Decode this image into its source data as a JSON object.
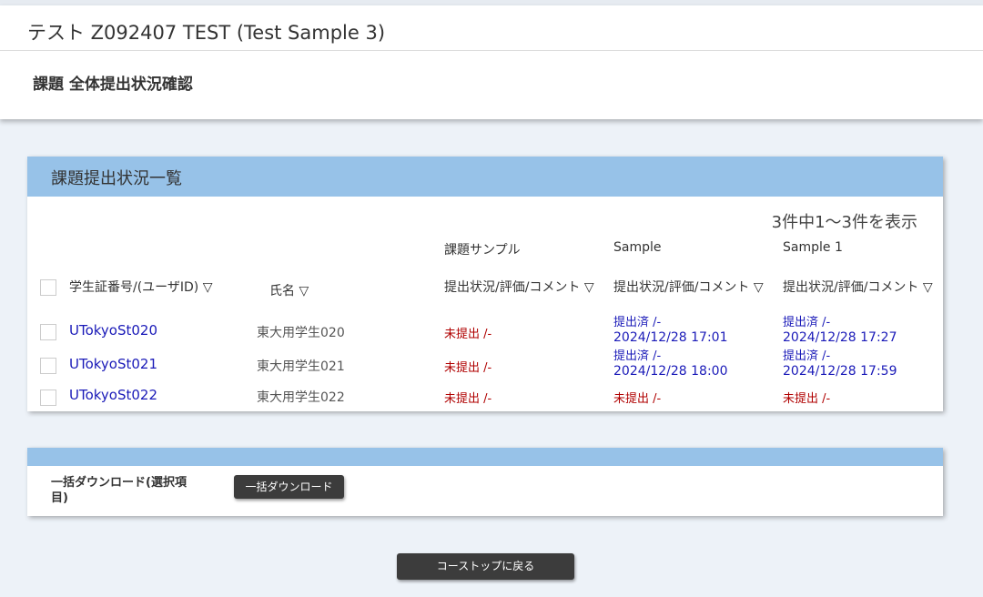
{
  "header": {
    "title": "テスト Z092407 TEST (Test Sample 3)",
    "subtitle": "課題 全体提出状況確認"
  },
  "list": {
    "heading": "課題提出状況一覧",
    "count": "3件中1～3件を表示",
    "columns": {
      "id": "学生証番号/(ユーザID) ▽",
      "name": "氏名 ▽",
      "assignments": [
        {
          "title": "課題サンプル",
          "sub": "提出状況/評価/コメント ▽"
        },
        {
          "title": "Sample",
          "sub": "提出状況/評価/コメント ▽"
        },
        {
          "title": "Sample 1",
          "sub": "提出状況/評価/コメント ▽"
        }
      ]
    },
    "rows": [
      {
        "id": "UTokyoSt020",
        "name": "東大用学生020",
        "cells": [
          {
            "status": "未提出 /-",
            "date": ""
          },
          {
            "status": "提出済 /-",
            "date": "2024/12/28 17:01"
          },
          {
            "status": "提出済 /-",
            "date": "2024/12/28 17:27"
          }
        ]
      },
      {
        "id": "UTokyoSt021",
        "name": "東大用学生021",
        "cells": [
          {
            "status": "未提出 /-",
            "date": ""
          },
          {
            "status": "提出済 /-",
            "date": "2024/12/28 18:00"
          },
          {
            "status": "提出済 /-",
            "date": "2024/12/28 17:59"
          }
        ]
      },
      {
        "id": "UTokyoSt022",
        "name": "東大用学生022",
        "cells": [
          {
            "status": "未提出 /-",
            "date": ""
          },
          {
            "status": "未提出 /-",
            "date": ""
          },
          {
            "status": "未提出 /-",
            "date": ""
          }
        ]
      }
    ]
  },
  "download": {
    "label": "一括ダウンロード(選択項目)",
    "button": "一括ダウンロード"
  },
  "back_button": "コーストップに戻る",
  "colors": {
    "accent": "#97c2e8",
    "link": "#1a1ab8",
    "unsubmitted": "#b00000"
  }
}
